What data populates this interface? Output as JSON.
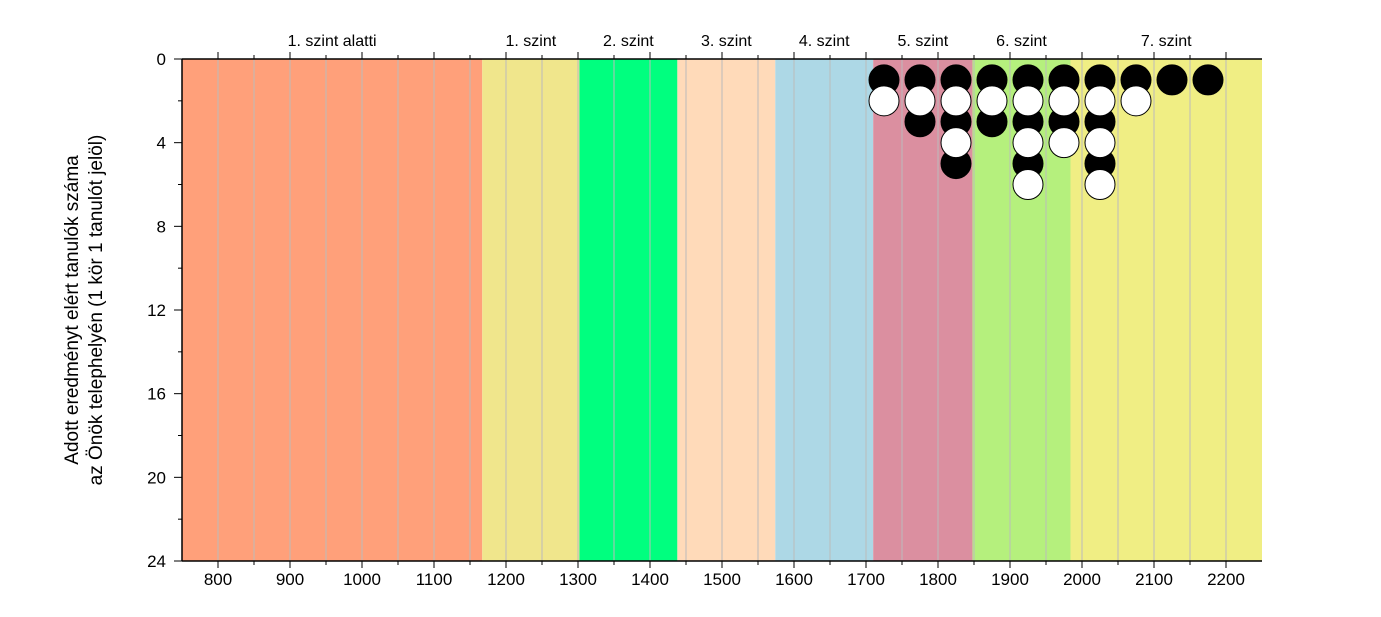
{
  "chart_data": {
    "type": "scatter",
    "xlabel": "",
    "ylabel_lines": [
      "Adott eredményt elért tanulók száma",
      "az Önök telephelyén (1 kör 1 tanulót jelöl)"
    ],
    "xlim": [
      750,
      2250
    ],
    "ylim": [
      0,
      24
    ],
    "y_inverted": true,
    "x_ticks": [
      "800",
      "900",
      "1000",
      "1100",
      "1200",
      "1300",
      "1400",
      "1500",
      "1600",
      "1700",
      "1800",
      "1900",
      "2000",
      "2100",
      "2200"
    ],
    "y_ticks": [
      "0",
      "4",
      "8",
      "12",
      "16",
      "20",
      "24"
    ],
    "bands": [
      {
        "label": "1. szint alatti",
        "from": 750,
        "to": 1167,
        "color": "#FFA07A"
      },
      {
        "label": "1. szint",
        "from": 1167,
        "to": 1302,
        "color": "#F0E68C"
      },
      {
        "label": "2. szint",
        "from": 1302,
        "to": 1438,
        "color": "#00FF7F"
      },
      {
        "label": "3. szint",
        "from": 1438,
        "to": 1574,
        "color": "#FFDAB9"
      },
      {
        "label": "4. szint",
        "from": 1574,
        "to": 1710,
        "color": "#ADD8E6"
      },
      {
        "label": "5. szint",
        "from": 1710,
        "to": 1848,
        "color": "#DB8FA0"
      },
      {
        "label": "6. szint",
        "from": 1848,
        "to": 1984,
        "color": "#B5F07D"
      },
      {
        "label": "7. szint",
        "from": 1984,
        "to": 2250,
        "color": "#F0EE84"
      }
    ],
    "series": [
      {
        "marker_color": "#000000",
        "points": [
          {
            "x": 1725,
            "y": 1
          },
          {
            "x": 1775,
            "y": 1
          },
          {
            "x": 1775,
            "y": 3
          },
          {
            "x": 1825,
            "y": 1
          },
          {
            "x": 1825,
            "y": 3
          },
          {
            "x": 1825,
            "y": 5
          },
          {
            "x": 1875,
            "y": 1
          },
          {
            "x": 1875,
            "y": 3
          },
          {
            "x": 1925,
            "y": 1
          },
          {
            "x": 1925,
            "y": 3
          },
          {
            "x": 1925,
            "y": 5
          },
          {
            "x": 1975,
            "y": 1
          },
          {
            "x": 1975,
            "y": 3
          },
          {
            "x": 2025,
            "y": 1
          },
          {
            "x": 2025,
            "y": 3
          },
          {
            "x": 2025,
            "y": 5
          },
          {
            "x": 2075,
            "y": 1
          },
          {
            "x": 2125,
            "y": 1
          },
          {
            "x": 2175,
            "y": 1
          }
        ]
      },
      {
        "marker_color": "#FFFFFF",
        "points": [
          {
            "x": 1725,
            "y": 2
          },
          {
            "x": 1775,
            "y": 2
          },
          {
            "x": 1825,
            "y": 2
          },
          {
            "x": 1825,
            "y": 4
          },
          {
            "x": 1875,
            "y": 2
          },
          {
            "x": 1925,
            "y": 2
          },
          {
            "x": 1925,
            "y": 4
          },
          {
            "x": 1925,
            "y": 6
          },
          {
            "x": 1975,
            "y": 2
          },
          {
            "x": 1975,
            "y": 4
          },
          {
            "x": 2025,
            "y": 2
          },
          {
            "x": 2025,
            "y": 4
          },
          {
            "x": 2025,
            "y": 6
          },
          {
            "x": 2075,
            "y": 2
          }
        ]
      }
    ],
    "grid": {
      "vertical": true,
      "horizontal": false,
      "color": "#BBBBBB"
    }
  }
}
